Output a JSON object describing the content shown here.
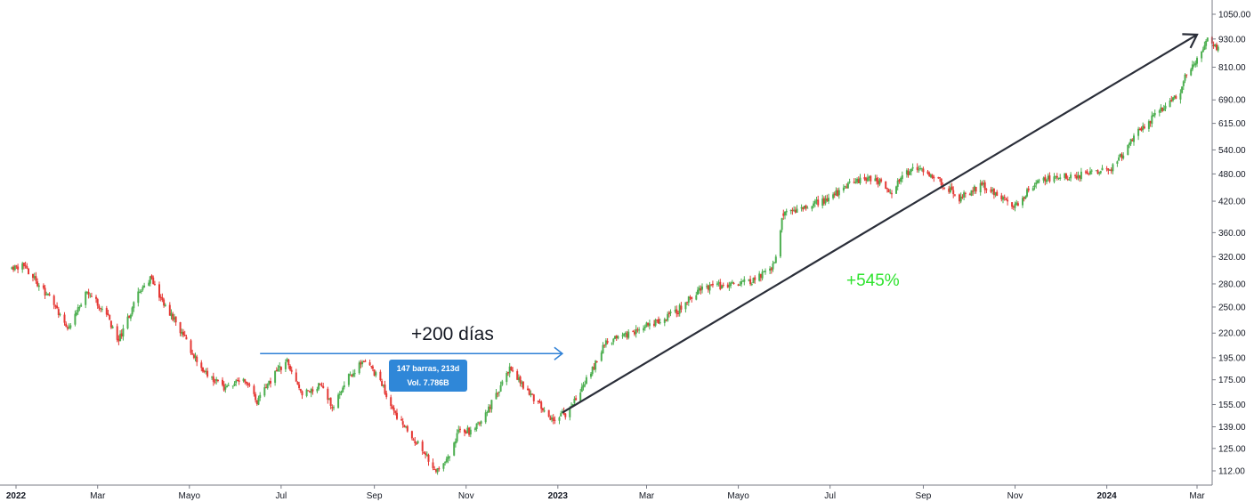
{
  "colors": {
    "up": "#4caf50",
    "down": "#e53935",
    "arrow_blue": "#2f80d6",
    "arrow_dark": "#2a2e39",
    "pct_green": "#2ee32e",
    "tooltip_bg": "#2f87d8",
    "axis_line": "#787b86"
  },
  "annotations": {
    "days_label": "+200 días",
    "pct_label": "+545%",
    "tooltip_line1": "147 barras, 213d",
    "tooltip_line2": "Vol. 7.786B"
  },
  "chart_data": {
    "type": "candlestick",
    "title": "",
    "xlabel": "",
    "ylabel": "",
    "y_scale": "log",
    "ylim": [
      105,
      1080
    ],
    "xlim": [
      "2022-01-01",
      "2024-03-18"
    ],
    "x_ticks": [
      {
        "date": "2022-01-01",
        "label": "2022",
        "bold": true
      },
      {
        "date": "2022-03-01",
        "label": "Mar",
        "bold": false
      },
      {
        "date": "2022-05-01",
        "label": "Mayo",
        "bold": false
      },
      {
        "date": "2022-07-01",
        "label": "Jul",
        "bold": false
      },
      {
        "date": "2022-09-01",
        "label": "Sep",
        "bold": false
      },
      {
        "date": "2022-11-01",
        "label": "Nov",
        "bold": false
      },
      {
        "date": "2023-01-01",
        "label": "2023",
        "bold": true
      },
      {
        "date": "2023-03-01",
        "label": "Mar",
        "bold": false
      },
      {
        "date": "2023-05-01",
        "label": "Mayo",
        "bold": false
      },
      {
        "date": "2023-07-01",
        "label": "Jul",
        "bold": false
      },
      {
        "date": "2023-09-01",
        "label": "Sep",
        "bold": false
      },
      {
        "date": "2023-11-01",
        "label": "Nov",
        "bold": false
      },
      {
        "date": "2024-01-01",
        "label": "2024",
        "bold": true
      },
      {
        "date": "2024-03-01",
        "label": "Mar",
        "bold": false
      }
    ],
    "y_ticks": [
      "1050.00",
      "930.00",
      "810.00",
      "690.00",
      "615.00",
      "540.00",
      "480.00",
      "420.00",
      "360.00",
      "320.00",
      "280.00",
      "250.00",
      "220.00",
      "195.00",
      "175.00",
      "155.00",
      "139.00",
      "125.00",
      "112.00"
    ],
    "price_path": [
      [
        "2022-01-01",
        300
      ],
      [
        "2022-01-10",
        308
      ],
      [
        "2022-01-28",
        262
      ],
      [
        "2022-02-10",
        225
      ],
      [
        "2022-02-22",
        270
      ],
      [
        "2022-03-07",
        240
      ],
      [
        "2022-03-15",
        212
      ],
      [
        "2022-03-30",
        275
      ],
      [
        "2022-04-05",
        288
      ],
      [
        "2022-04-25",
        222
      ],
      [
        "2022-05-10",
        182
      ],
      [
        "2022-05-25",
        168
      ],
      [
        "2022-06-05",
        178
      ],
      [
        "2022-06-15",
        158
      ],
      [
        "2022-06-28",
        182
      ],
      [
        "2022-07-05",
        192
      ],
      [
        "2022-07-15",
        162
      ],
      [
        "2022-07-28",
        172
      ],
      [
        "2022-08-04",
        152
      ],
      [
        "2022-08-15",
        178
      ],
      [
        "2022-08-25",
        192
      ],
      [
        "2022-09-05",
        175
      ],
      [
        "2022-09-15",
        147
      ],
      [
        "2022-09-28",
        130
      ],
      [
        "2022-10-13",
        112
      ],
      [
        "2022-10-20",
        120
      ],
      [
        "2022-10-28",
        138
      ],
      [
        "2022-11-05",
        135
      ],
      [
        "2022-11-20",
        160
      ],
      [
        "2022-11-30",
        185
      ],
      [
        "2022-12-10",
        168
      ],
      [
        "2022-12-28",
        145
      ],
      [
        "2023-01-06",
        148
      ],
      [
        "2023-01-20",
        175
      ],
      [
        "2023-02-02",
        210
      ],
      [
        "2023-02-15",
        218
      ],
      [
        "2023-03-01",
        228
      ],
      [
        "2023-03-20",
        243
      ],
      [
        "2023-04-05",
        272
      ],
      [
        "2023-04-20",
        278
      ],
      [
        "2023-05-10",
        283
      ],
      [
        "2023-05-25",
        308
      ],
      [
        "2023-05-31",
        396
      ],
      [
        "2023-06-15",
        412
      ],
      [
        "2023-06-30",
        424
      ],
      [
        "2023-07-15",
        460
      ],
      [
        "2023-07-31",
        470
      ],
      [
        "2023-08-10",
        438
      ],
      [
        "2023-08-22",
        485
      ],
      [
        "2023-08-31",
        495
      ],
      [
        "2023-09-15",
        455
      ],
      [
        "2023-09-25",
        425
      ],
      [
        "2023-10-10",
        455
      ],
      [
        "2023-10-20",
        432
      ],
      [
        "2023-10-31",
        408
      ],
      [
        "2023-11-15",
        460
      ],
      [
        "2023-11-30",
        477
      ],
      [
        "2023-12-10",
        472
      ],
      [
        "2023-12-20",
        482
      ],
      [
        "2024-01-05",
        495
      ],
      [
        "2024-01-20",
        580
      ],
      [
        "2024-02-05",
        655
      ],
      [
        "2024-02-20",
        725
      ],
      [
        "2024-02-23",
        790
      ],
      [
        "2024-03-05",
        880
      ],
      [
        "2024-03-08",
        940
      ],
      [
        "2024-03-15",
        880
      ]
    ],
    "blue_arrow": {
      "start": [
        "2022-06-17",
        199
      ],
      "end": [
        "2023-01-04",
        199
      ]
    },
    "trend_arrow": {
      "start": [
        "2023-01-04",
        149
      ],
      "end": [
        "2024-03-01",
        950
      ]
    }
  }
}
